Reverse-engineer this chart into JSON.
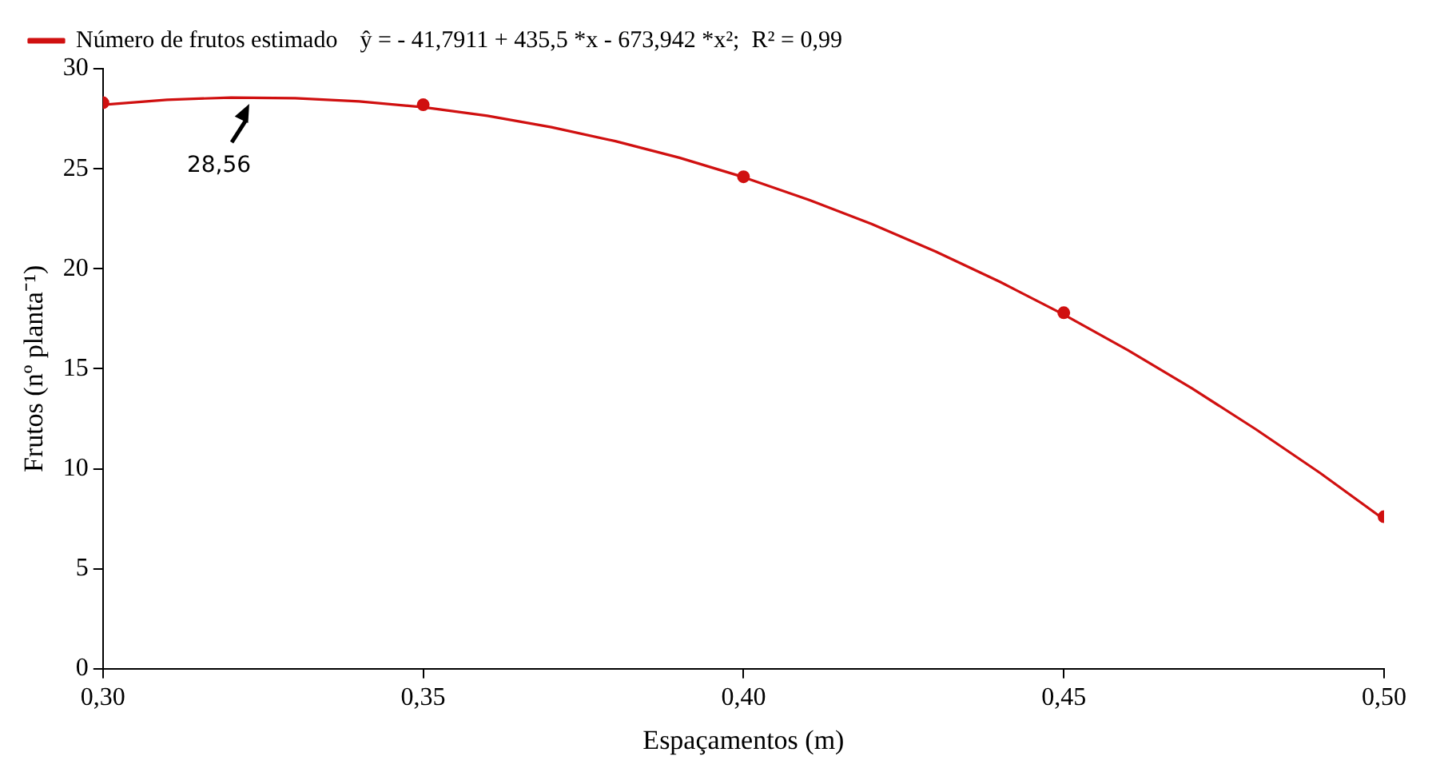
{
  "chart_data": {
    "type": "scatter",
    "xlabel": "Espaçamentos (m)",
    "ylabel": "Frutos (nº planta⁻¹)",
    "xlim": [
      0.3,
      0.5
    ],
    "xticks": [
      {
        "value": 0.3,
        "label": "0,30"
      },
      {
        "value": 0.35,
        "label": "0,35"
      },
      {
        "value": 0.4,
        "label": "0,40"
      },
      {
        "value": 0.45,
        "label": "0,45"
      },
      {
        "value": 0.5,
        "label": "0,50"
      }
    ],
    "ylim": [
      0,
      30
    ],
    "yticks": [
      0,
      5,
      10,
      15,
      20,
      25,
      30
    ],
    "grid": false,
    "legend": "top",
    "marker": "circle",
    "annotations": [
      "ŷ = - 41,7911 + 435,5 *x - 673,942 *x²;  R² = 0,99",
      {
        "text": "28,56",
        "x": 0.3231,
        "y": 28.56
      }
    ],
    "series": [
      {
        "color": "#d01010",
        "x": [
          0.3,
          0.35,
          0.4,
          0.45,
          0.5
        ],
        "values": [
          28.3,
          28.2,
          24.6,
          17.8,
          7.6
        ]
      },
      {
        "type": "line",
        "name": "Número de frutos estimado",
        "color": "#d01010",
        "marker": "none",
        "x": [
          0.3,
          0.31,
          0.32,
          0.33,
          0.34,
          0.35,
          0.36,
          0.37,
          0.38,
          0.39,
          0.4,
          0.41,
          0.42,
          0.43,
          0.44,
          0.45,
          0.46,
          0.47,
          0.48,
          0.49,
          0.5
        ],
        "values": [
          28.2,
          28.45,
          28.56,
          28.53,
          28.37,
          28.08,
          27.65,
          27.08,
          26.38,
          25.55,
          24.58,
          23.47,
          22.24,
          20.86,
          19.35,
          17.71,
          15.93,
          14.02,
          11.97,
          9.79,
          7.47
        ]
      }
    ]
  }
}
